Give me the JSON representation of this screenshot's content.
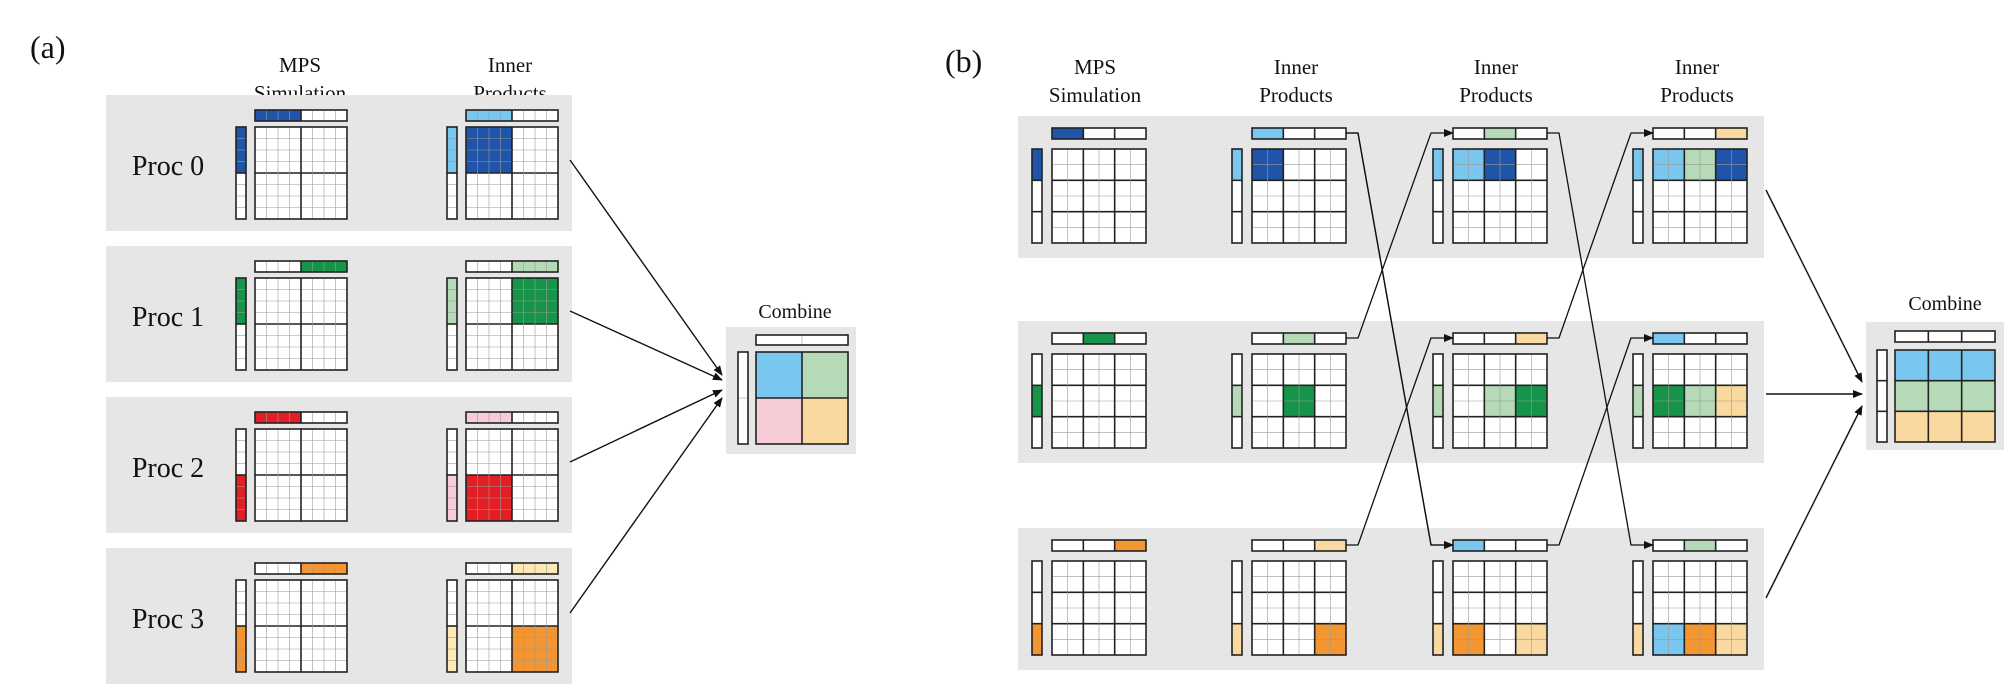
{
  "panel_a": {
    "label": "(a)",
    "header_mps": [
      "MPS",
      "Simulation"
    ],
    "header_inner": [
      "Inner",
      "Products"
    ],
    "procs": [
      {
        "label": "Proc 0",
        "color": "#1f54a8",
        "light": "#79c6ee",
        "block": [
          0,
          0
        ]
      },
      {
        "label": "Proc 1",
        "color": "#16954a",
        "light": "#b6d9b8",
        "block": [
          0,
          1
        ]
      },
      {
        "label": "Proc 2",
        "color": "#e31f26",
        "light": "#f6cdd6",
        "block": [
          1,
          0
        ]
      },
      {
        "label": "Proc 3",
        "color": "#f39632",
        "light": "#fde9b5",
        "block": [
          1,
          1
        ]
      }
    ],
    "combine_label": "Combine",
    "combine_colors": [
      "#79c6ee",
      "#b6d9b8",
      "#f6cdd6",
      "#f9d9a0"
    ]
  },
  "panel_b": {
    "label": "(b)",
    "stage_headers": [
      [
        "MPS",
        "Simulation"
      ],
      [
        "Inner",
        "Products"
      ],
      [
        "Inner",
        "Products"
      ],
      [
        "Inner",
        "Products"
      ]
    ],
    "rows": [
      {
        "color": "#1f54a8",
        "light": "#79c6ee"
      },
      {
        "color": "#16954a",
        "light": "#b6d9b8"
      },
      {
        "color": "#f39632",
        "light": "#f9d9a0"
      }
    ],
    "combine_label": "Combine"
  }
}
